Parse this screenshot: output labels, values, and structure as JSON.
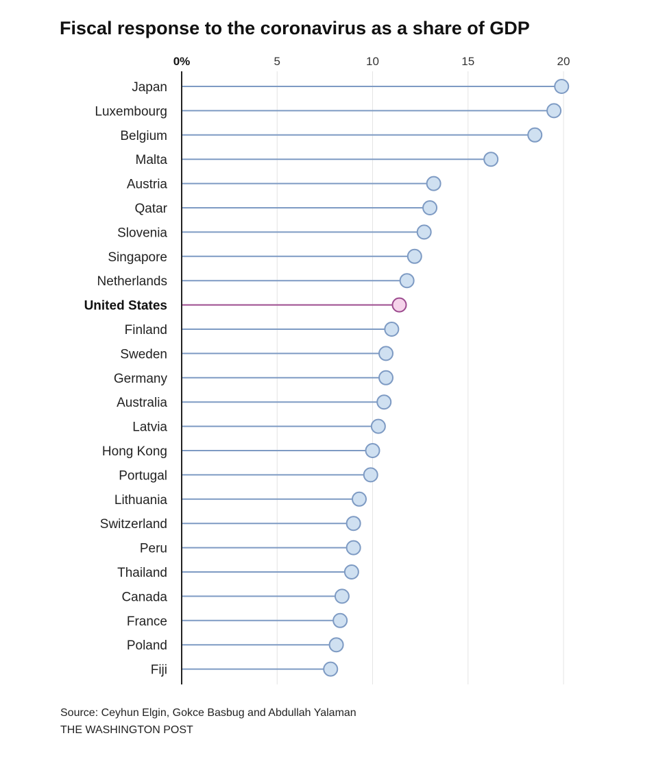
{
  "chart_data": {
    "type": "lollipop",
    "title": "Fiscal response to the coronavirus as a share of GDP",
    "xlabel": "",
    "ylabel": "",
    "xlim": [
      0,
      20
    ],
    "x_ticks": [
      {
        "value": 0,
        "label": "0%"
      },
      {
        "value": 5,
        "label": "5"
      },
      {
        "value": 10,
        "label": "10"
      },
      {
        "value": 15,
        "label": "15"
      },
      {
        "value": 20,
        "label": "20"
      }
    ],
    "grid": true,
    "highlight": "United States",
    "categories": [
      "Japan",
      "Luxembourg",
      "Belgium",
      "Malta",
      "Austria",
      "Qatar",
      "Slovenia",
      "Singapore",
      "Netherlands",
      "United States",
      "Finland",
      "Sweden",
      "Germany",
      "Australia",
      "Latvia",
      "Hong Kong",
      "Portugal",
      "Lithuania",
      "Switzerland",
      "Peru",
      "Thailand",
      "Canada",
      "France",
      "Poland",
      "Fiji"
    ],
    "values": [
      19.9,
      19.5,
      18.5,
      16.2,
      13.2,
      13.0,
      12.7,
      12.2,
      11.8,
      11.4,
      11.0,
      10.7,
      10.7,
      10.6,
      10.3,
      10.0,
      9.9,
      9.3,
      9.0,
      9.0,
      8.9,
      8.4,
      8.3,
      8.1,
      7.8
    ],
    "colors": {
      "default_stroke": "#7d9ac3",
      "default_fill": "#cfe0f1",
      "highlight_stroke": "#9c4a8e",
      "highlight_fill": "#f5d3ea",
      "gridline": "#e4e4e4",
      "axis": "#222222"
    }
  },
  "footer": {
    "source": "Source: Ceyhun Elgin, Gokce Basbug and Abdullah Yalaman",
    "publisher": "THE WASHINGTON POST"
  }
}
